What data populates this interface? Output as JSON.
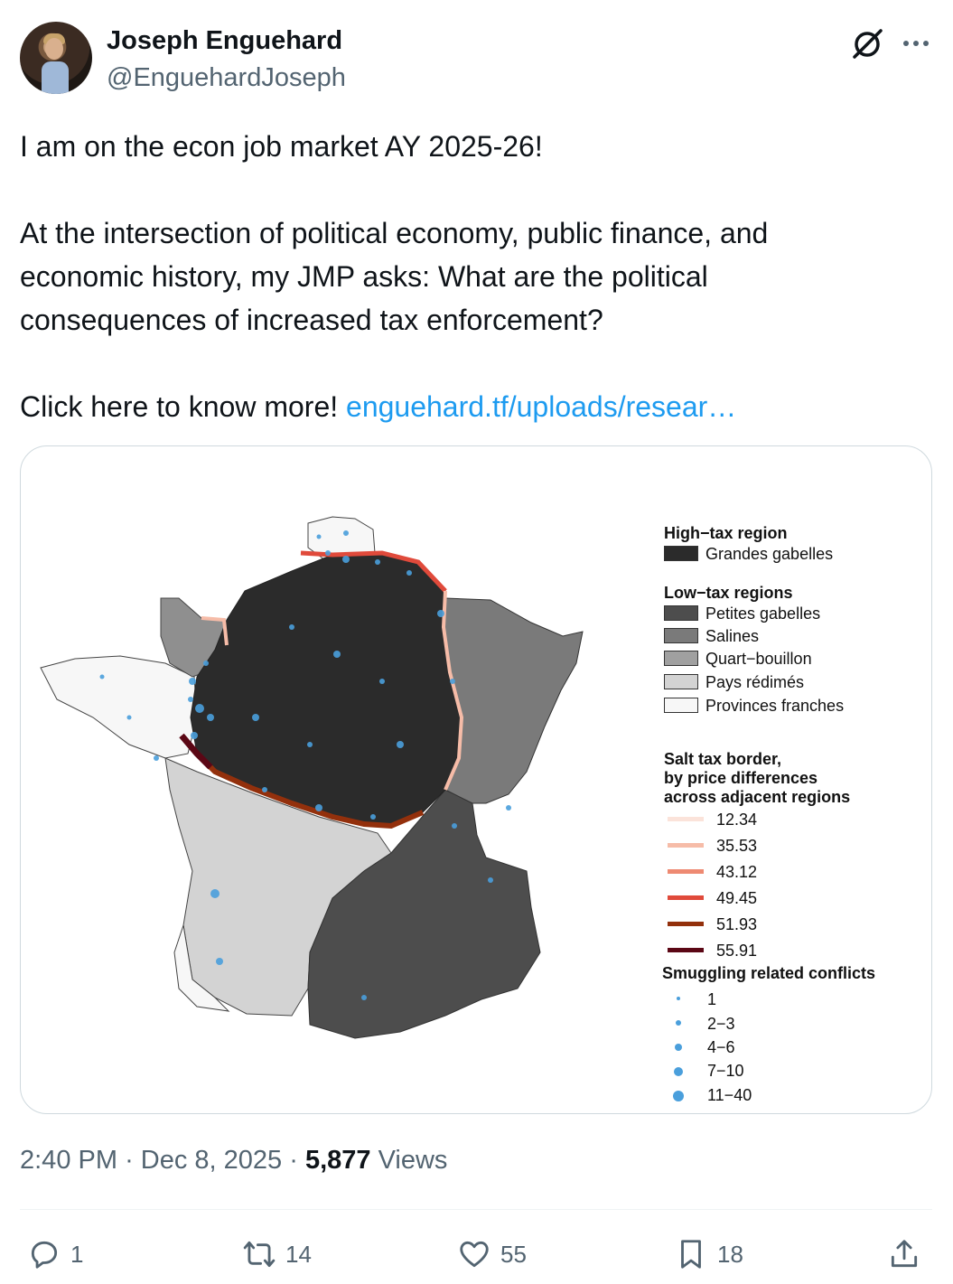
{
  "author": {
    "name": "Joseph Enguehard",
    "handle": "@EnguehardJoseph"
  },
  "tweet": {
    "text": "I am on the econ job market AY 2025-26!\n\nAt the intersection of political economy, public finance, and\neconomic history, my JMP asks: What are the political\nconsequences of increased tax enforcement?\n\nClick here to know more! ",
    "link": "enguehard.tf/uploads/resear…"
  },
  "map_legend": {
    "high_tax_title": "High−tax region",
    "high_tax_items": [
      {
        "label": "Grandes gabelles",
        "color": "#2b2b2b"
      }
    ],
    "low_tax_title": "Low−tax regions",
    "low_tax_items": [
      {
        "label": "Petites gabelles",
        "color": "#4d4d4d"
      },
      {
        "label": "Salines",
        "color": "#7a7a7a"
      },
      {
        "label": "Quart−bouillon",
        "color": "#a0a0a0"
      },
      {
        "label": "Pays rédimés",
        "color": "#d3d3d3"
      },
      {
        "label": "Provinces franches",
        "color": "#f7f7f7"
      }
    ],
    "border_title_lines": [
      "Salt tax border,",
      "by price differences",
      "across adjacent regions"
    ],
    "border_items": [
      {
        "label": "12.34",
        "color": "#fbe3da"
      },
      {
        "label": "35.53",
        "color": "#f6bca8"
      },
      {
        "label": "43.12",
        "color": "#ee8a72"
      },
      {
        "label": "49.45",
        "color": "#e04a3b"
      },
      {
        "label": "51.93",
        "color": "#93300c"
      },
      {
        "label": "55.91",
        "color": "#5b0715"
      }
    ],
    "conflicts_title": "Smuggling related conflicts",
    "conflict_items": [
      "1",
      "2−3",
      "4−6",
      "7−10",
      "11−40"
    ],
    "conflict_color": "#4a9fdc"
  },
  "meta": {
    "time": "2:40 PM",
    "date": "Dec 8, 2025",
    "views_count": "5,877",
    "views_label": "Views"
  },
  "actions": {
    "replies": "1",
    "retweets": "14",
    "likes": "55",
    "bookmarks": "18"
  },
  "icons": [
    "grok-icon",
    "more-icon",
    "reply-icon",
    "retweet-icon",
    "like-icon",
    "bookmark-icon",
    "share-icon"
  ]
}
